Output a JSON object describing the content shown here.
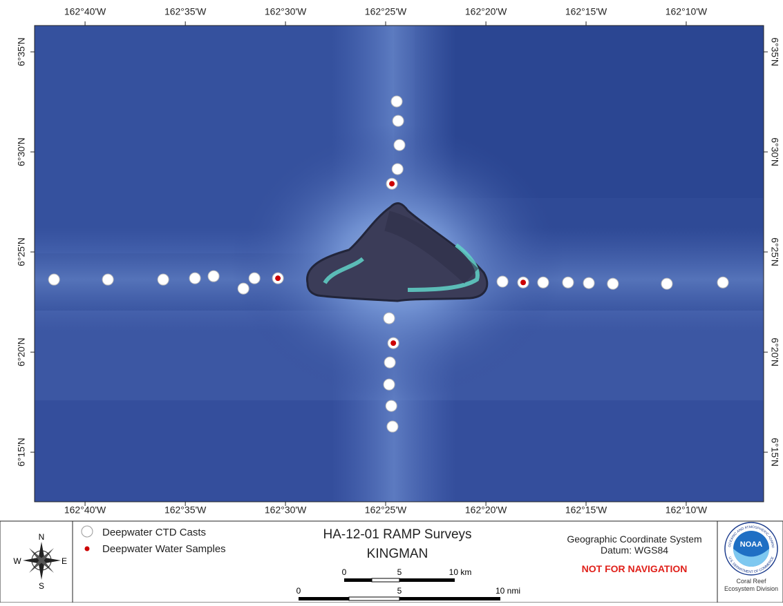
{
  "map": {
    "xlim": [
      -162.7087,
      -162.1023
    ],
    "ylim": [
      6.2087,
      6.6052
    ],
    "xticks": [
      {
        "value": -162.6667,
        "label": "162°40'W"
      },
      {
        "value": -162.5833,
        "label": "162°35'W"
      },
      {
        "value": -162.5,
        "label": "162°30'W"
      },
      {
        "value": -162.4167,
        "label": "162°25'W"
      },
      {
        "value": -162.3333,
        "label": "162°20'W"
      },
      {
        "value": -162.25,
        "label": "162°15'W"
      },
      {
        "value": -162.1667,
        "label": "162°10'W"
      }
    ],
    "yticks": [
      {
        "value": 6.25,
        "label": "6°15'N"
      },
      {
        "value": 6.3333,
        "label": "6°20'N"
      },
      {
        "value": 6.4167,
        "label": "6°25'N"
      },
      {
        "value": 6.5,
        "label": "6°30'N"
      },
      {
        "value": 6.5833,
        "label": "6°35'N"
      }
    ],
    "series": [
      {
        "name": "Deepwater CTD Casts",
        "color": "#ffffff",
        "x": [
          -162.6925,
          -162.6477,
          -162.6017,
          -162.5753,
          -162.5598,
          -162.535,
          -162.5258,
          -162.3195,
          -162.2857,
          -162.265,
          -162.2477,
          -162.2277,
          -162.1828,
          -162.1362,
          -162.4075,
          -162.4063,
          -162.4052,
          -162.4068,
          -162.4138,
          -162.4132,
          -162.4138,
          -162.412,
          -162.411
        ],
        "y": [
          6.3937,
          6.3937,
          6.3937,
          6.3948,
          6.3965,
          6.3862,
          6.3948,
          6.392,
          6.3913,
          6.3913,
          6.3908,
          6.3902,
          6.3902,
          6.3913,
          6.542,
          6.5258,
          6.5057,
          6.4857,
          6.3615,
          6.3247,
          6.3063,
          6.2885,
          6.2713
        ]
      },
      {
        "name": "Deepwater Water Samples",
        "color": "#cc0000",
        "x": [
          -162.5063,
          -162.3023,
          -162.4115,
          -162.4103
        ],
        "y": [
          6.3948,
          6.3913,
          6.4735,
          6.3408
        ]
      }
    ]
  },
  "title": "HA-12-01 RAMP Surveys",
  "subtitle": "KINGMAN",
  "coordinate_system": "Geographic Coordinate System",
  "datum": "Datum: WGS84",
  "warning": "NOT FOR NAVIGATION",
  "scale_km": [
    "0",
    "5",
    "10 km"
  ],
  "scale_nmi": [
    "0",
    "5",
    "10 nmi"
  ],
  "compass": {
    "n": "N",
    "e": "E",
    "s": "S",
    "w": "W"
  },
  "logo": {
    "name": "NOAA",
    "ring_top": "NATIONAL OCEANIC AND ATMOSPHERIC ADMINISTRATION",
    "ring_bottom": "U.S. DEPARTMENT OF COMMERCE",
    "caption_1": "Coral Reef",
    "caption_2": "Ecosystem Division"
  }
}
